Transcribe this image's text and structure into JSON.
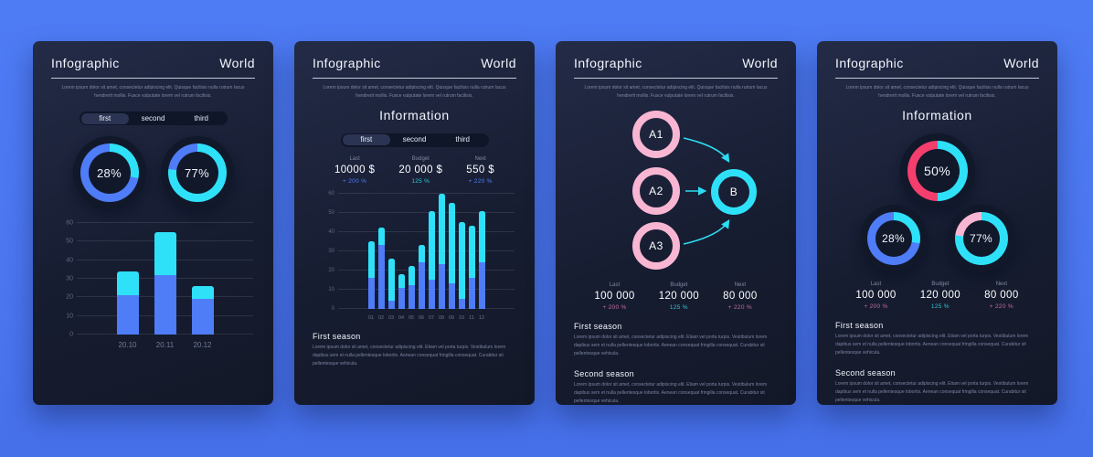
{
  "page": {
    "background": "#4c7af3"
  },
  "palette": {
    "blue": "#4f7cf7",
    "cyan": "#2ee1f8",
    "pink": "#f8b6d2",
    "red_pink": "#f43f6e",
    "teal": "#2cc9d9",
    "purple_pink": "#c46ba4"
  },
  "cards": [
    {
      "title": "Infographic",
      "brand": "World",
      "subtitle": "Lorem ipsum dolor sit amet, consectetur adipiscing elit. Quisque facilisis nulla rutrum lacus hendrerit mollis. Fusce vulputate lorem vel rutrum facilisis.",
      "tabs": [
        "first",
        "second",
        "third"
      ],
      "active_tab": "first",
      "donuts": [
        {
          "label": "28%",
          "value": 28,
          "arc_color": "#2ee1f8",
          "rest_color": "#4f7cf7"
        },
        {
          "label": "77%",
          "value": 77,
          "arc_color": "#2ee1f8",
          "rest_color": "#4f7cf7"
        }
      ]
    },
    {
      "title": "Infographic",
      "brand": "World",
      "subtitle": "Lorem ipsum dolor sit amet, consectetur adipiscing elit. Quisque facilisis nulla rutrum lacus hendrerit mollis. Fusce vulputate lorem vel rutrum facilisis.",
      "heading": "Information",
      "tabs": [
        "first",
        "second",
        "third"
      ],
      "active_tab": "first",
      "stats": [
        {
          "label": "Last",
          "value": "10000 $",
          "delta": "+ 200 %",
          "delta_color": "#4f7cf7"
        },
        {
          "label": "Budget",
          "value": "20 000 $",
          "delta": "125 %",
          "delta_color": "#2cc9d9"
        },
        {
          "label": "Next",
          "value": "550 $",
          "delta": "+ 220 %",
          "delta_color": "#4f7cf7"
        }
      ],
      "seasons": [
        {
          "heading": "First season",
          "text": "Lorem ipsum dolor sit amet, consectetur adipiscing elit. Etiam vel porta turpis. Vestibulum lorem dapibus sem et nulla pellentesque lobortis. Aenean consequat fringilla consequat. Curabitur sit pellentesque vehicula."
        }
      ]
    },
    {
      "title": "Infographic",
      "brand": "World",
      "subtitle": "Lorem ipsum dolor sit amet, consectetur adipiscing elit. Quisque facilisis nulla rutrum lacus hendrerit mollis. Fusce vulputate lorem vel rutrum facilisis.",
      "diagram": {
        "nodes": [
          {
            "label": "A1"
          },
          {
            "label": "A2"
          },
          {
            "label": "A3"
          },
          {
            "label": "B"
          }
        ],
        "source_color": "#f8b6d2",
        "target_color": "#2ee1f8",
        "arrow_color": "#2bdcf2"
      },
      "stats": [
        {
          "label": "Last",
          "value": "100 000",
          "delta": "+ 200 %",
          "delta_color": "#c46ba4"
        },
        {
          "label": "Budget",
          "value": "120 000",
          "delta": "125 %",
          "delta_color": "#2cc9d9"
        },
        {
          "label": "Next",
          "value": "80 000",
          "delta": "+ 220 %",
          "delta_color": "#c46ba4"
        }
      ],
      "seasons": [
        {
          "heading": "First season",
          "text": "Lorem ipsum dolor sit amet, consectetur adipiscing elit. Etiam vel porta turpis. Vestibulum lorem dapibus sem et nulla pellentesque lobortis. Aenean consequat fringilla consequat. Curabitur sit pellentesque vehicula."
        },
        {
          "heading": "Second season",
          "text": "Lorem ipsum dolor sit amet, consectetur adipiscing elit. Etiam vel porta turpis. Vestibulum lorem dapibus sem et nulla pellentesque lobortis. Aenean consequat fringilla consequat. Curabitur sit pellentesque vehicula."
        }
      ]
    },
    {
      "title": "Infographic",
      "brand": "World",
      "subtitle": "Lorem ipsum dolor sit amet, consectetur adipiscing elit. Quisque facilisis nulla rutrum lacus hendrerit mollis. Fusce vulputate lorem vel rutrum facilisis.",
      "heading": "Information",
      "donuts": [
        {
          "label": "50%",
          "value": 50,
          "arc_color": "#2ee1f8",
          "rest_color": "#f43f6e"
        },
        {
          "label": "28%",
          "value": 28,
          "arc_color": "#2ee1f8",
          "rest_color": "#4f7cf7"
        },
        {
          "label": "77%",
          "value": 77,
          "arc_color": "#2ee1f8",
          "rest_color": "#f8b6d2"
        }
      ],
      "stats": [
        {
          "label": "Last",
          "value": "100 000",
          "delta": "+ 200 %",
          "delta_color": "#c46ba4"
        },
        {
          "label": "Budget",
          "value": "120 000",
          "delta": "125 %",
          "delta_color": "#2cc9d9"
        },
        {
          "label": "Next",
          "value": "80 000",
          "delta": "+ 220 %",
          "delta_color": "#c46ba4"
        }
      ],
      "seasons": [
        {
          "heading": "First season",
          "text": "Lorem ipsum dolor sit amet, consectetur adipiscing elit. Etiam vel porta turpis. Vestibulum lorem dapibus sem et nulla pellentesque lobortis. Aenean consequat fringilla consequat. Curabitur sit pellentesque vehicula."
        },
        {
          "heading": "Second season",
          "text": "Lorem ipsum dolor sit amet, consectetur adipiscing elit. Etiam vel porta turpis. Vestibulum lorem dapibus sem et nulla pellentesque lobortis. Aenean consequat fringilla consequat. Curabitur sit pellentesque vehicula."
        }
      ]
    }
  ],
  "chart_data": [
    {
      "type": "bar",
      "stacked": true,
      "title": "",
      "categories": [
        "20.10",
        "20.11",
        "20.12"
      ],
      "series": [
        {
          "name": "first",
          "color": "#4f7cf7",
          "values": [
            21,
            32,
            19
          ]
        },
        {
          "name": "second",
          "color": "#2ee1f8",
          "values": [
            13,
            23,
            7
          ]
        }
      ],
      "xlabel": "",
      "ylabel": "",
      "ylim": [
        0,
        60
      ],
      "yticks": [
        0,
        10,
        20,
        30,
        40,
        50,
        60
      ],
      "grid": true,
      "legend": "none"
    },
    {
      "type": "bar",
      "stacked": true,
      "title": "",
      "categories": [
        "01",
        "02",
        "03",
        "04",
        "05",
        "06",
        "07",
        "08",
        "09",
        "10",
        "11",
        "12"
      ],
      "series": [
        {
          "name": "first",
          "color": "#4f7cf7",
          "values": [
            16,
            33,
            4,
            11,
            12,
            24,
            15,
            23,
            13,
            5,
            16,
            24
          ]
        },
        {
          "name": "second",
          "color": "#2ee1f8",
          "values": [
            19,
            9,
            22,
            7,
            10,
            9,
            36,
            37,
            42,
            40,
            27,
            27
          ]
        }
      ],
      "xlabel": "",
      "ylabel": "",
      "ylim": [
        0,
        60
      ],
      "yticks": [
        0,
        10,
        20,
        30,
        40,
        50,
        60
      ],
      "grid": true,
      "legend": "none"
    }
  ]
}
